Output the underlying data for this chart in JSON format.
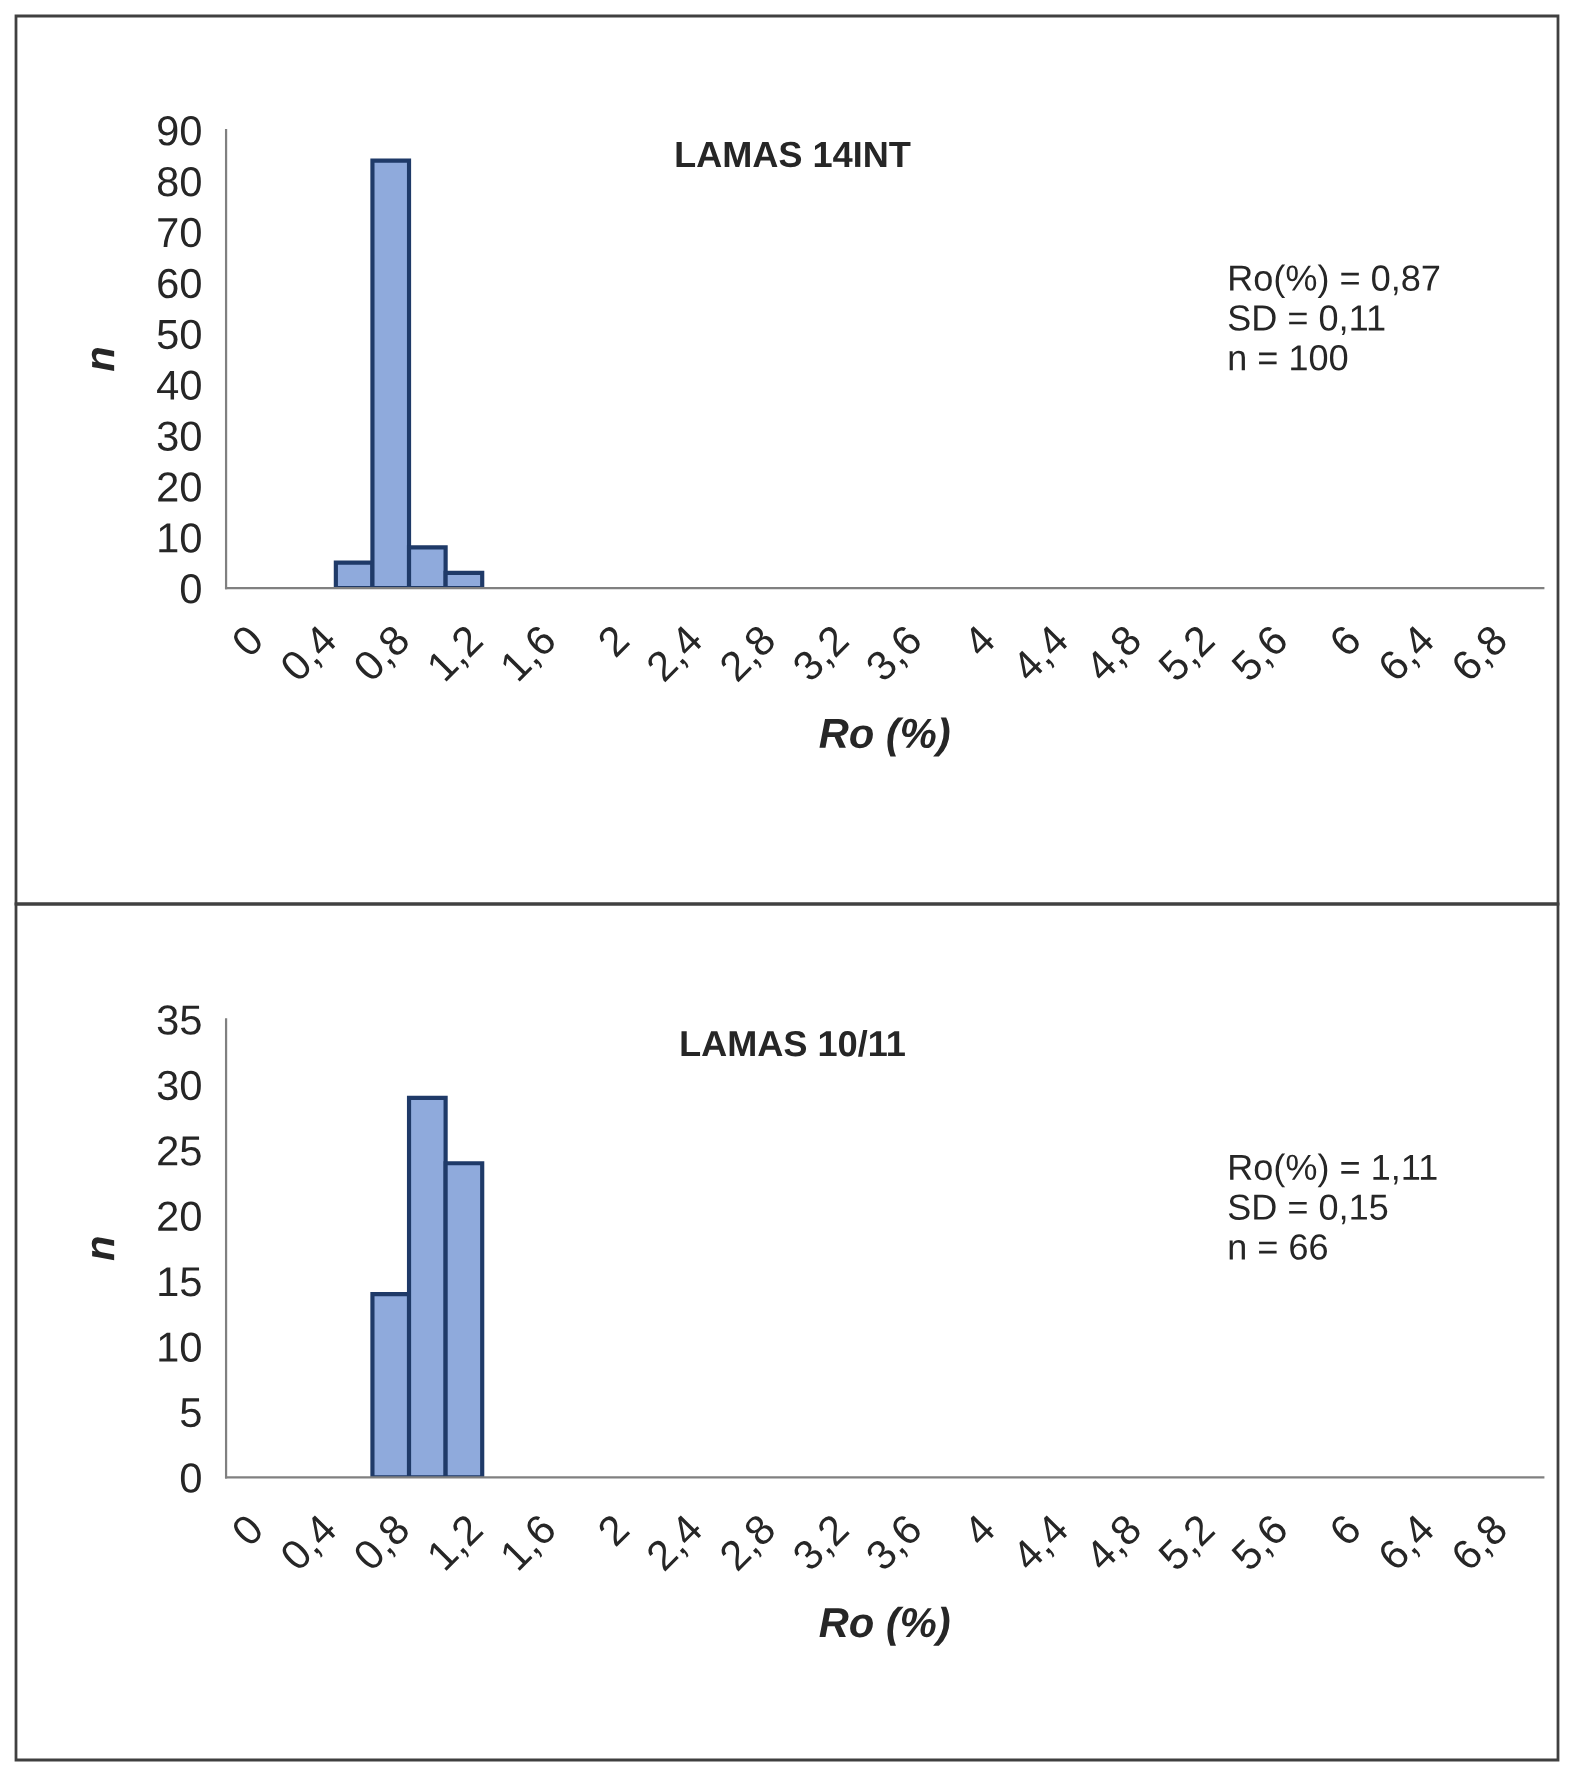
{
  "chart_data": [
    {
      "type": "bar",
      "title": "LAMAS 14INT",
      "xlabel": "Ro (%)",
      "ylabel": "n",
      "categories": [
        "0",
        null,
        "0,4",
        null,
        "0,8",
        null,
        "1,2",
        null,
        "1,6",
        null,
        "2",
        null,
        "2,4",
        null,
        "2,8",
        null,
        "3,2",
        null,
        "3,6",
        null,
        "4",
        null,
        "4,4",
        null,
        "4,8",
        null,
        "5,2",
        null,
        "5,6",
        null,
        "6",
        null,
        "6,4",
        null,
        "6,8",
        null
      ],
      "values": [
        0,
        0,
        0,
        5,
        84,
        8,
        3,
        0,
        0,
        0,
        0,
        0,
        0,
        0,
        0,
        0,
        0,
        0,
        0,
        0,
        0,
        0,
        0,
        0,
        0,
        0,
        0,
        0,
        0,
        0,
        0,
        0,
        0,
        0,
        0,
        0
      ],
      "color": "#8faadc",
      "ylim": [
        0,
        90
      ],
      "yticks": [
        0,
        10,
        20,
        30,
        40,
        50,
        60,
        70,
        80,
        90
      ],
      "grid": false,
      "legend": false,
      "annotations": [
        "Ro(%) = 0,87",
        "SD = 0,11",
        "n = 100"
      ]
    },
    {
      "type": "bar",
      "title": "LAMAS 10/11",
      "xlabel": "Ro (%)",
      "ylabel": "n",
      "categories": [
        "0",
        null,
        "0,4",
        null,
        "0,8",
        null,
        "1,2",
        null,
        "1,6",
        null,
        "2",
        null,
        "2,4",
        null,
        "2,8",
        null,
        "3,2",
        null,
        "3,6",
        null,
        "4",
        null,
        "4,4",
        null,
        "4,8",
        null,
        "5,2",
        null,
        "5,6",
        null,
        "6",
        null,
        "6,4",
        null,
        "6,8",
        null
      ],
      "values": [
        0,
        0,
        0,
        0,
        14,
        29,
        24,
        0,
        0,
        0,
        0,
        0,
        0,
        0,
        0,
        0,
        0,
        0,
        0,
        0,
        0,
        0,
        0,
        0,
        0,
        0,
        0,
        0,
        0,
        0,
        0,
        0,
        0,
        0,
        0,
        0
      ],
      "color": "#8faadc",
      "ylim": [
        0,
        35
      ],
      "yticks": [
        0,
        5,
        10,
        15,
        20,
        25,
        30,
        35
      ],
      "grid": false,
      "legend": false,
      "annotations": [
        "Ro(%) = 1,11",
        "SD = 0,15",
        "n = 66"
      ]
    }
  ]
}
